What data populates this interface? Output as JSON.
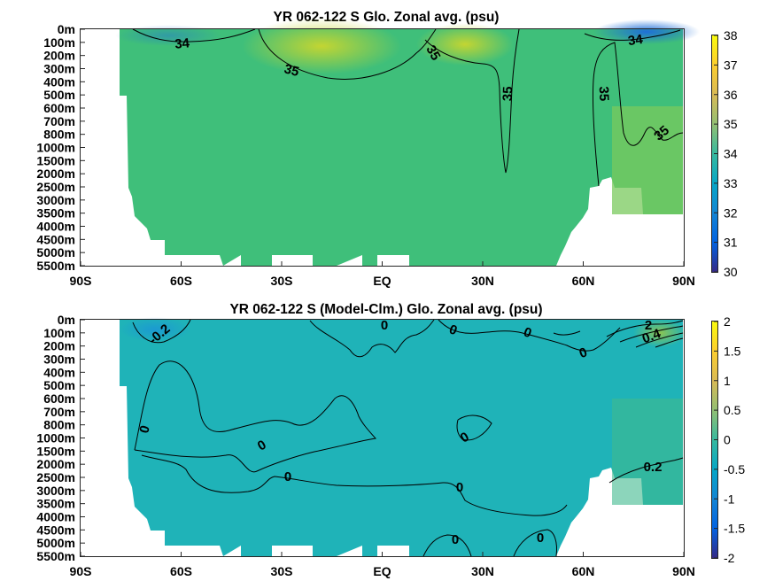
{
  "chart_data": [
    {
      "type": "heatmap",
      "title": "YR 062-122 S Glo. Zonal avg. (psu)",
      "x_ticks": [
        "90S",
        "60S",
        "30S",
        "EQ",
        "30N",
        "60N",
        "90N"
      ],
      "x_tick_values": [
        -90,
        -60,
        -30,
        0,
        30,
        60,
        90
      ],
      "y_ticks": [
        "0m",
        "100m",
        "200m",
        "300m",
        "400m",
        "500m",
        "600m",
        "700m",
        "800m",
        "1000m",
        "1500m",
        "2000m",
        "2500m",
        "3000m",
        "3500m",
        "4000m",
        "4500m",
        "5000m",
        "5500m"
      ],
      "colorbar": {
        "ticks": [
          "30",
          "31",
          "32",
          "33",
          "34",
          "35",
          "36",
          "37",
          "38"
        ],
        "range": [
          30,
          38
        ],
        "colormap": "parula"
      },
      "contour_labels": [
        "34",
        "35",
        "35",
        "35",
        "35",
        "34",
        "35"
      ],
      "fill_colors": {
        "dominant": "#3fbf7a",
        "high": "#b0d13a",
        "low": "#2c7fd9"
      }
    },
    {
      "type": "heatmap",
      "title": "YR 062-122 S (Model-Clm.) Glo. Zonal avg. (psu)",
      "x_ticks": [
        "90S",
        "60S",
        "30S",
        "EQ",
        "30N",
        "60N",
        "90N"
      ],
      "x_tick_values": [
        -90,
        -60,
        -30,
        0,
        30,
        60,
        90
      ],
      "y_ticks": [
        "0m",
        "100m",
        "200m",
        "300m",
        "400m",
        "500m",
        "600m",
        "700m",
        "800m",
        "1000m",
        "1500m",
        "2000m",
        "2500m",
        "3000m",
        "3500m",
        "4000m",
        "4500m",
        "5000m",
        "5500m"
      ],
      "colorbar": {
        "ticks": [
          "2",
          "1.5",
          "1",
          "0.5",
          "0",
          "-0.5",
          "-1",
          "-1.5",
          "-2"
        ],
        "range": [
          -2,
          2
        ],
        "colormap": "parula"
      },
      "contour_labels": [
        "-0.2",
        "0",
        "0",
        "0",
        "0",
        "2",
        "0.4",
        "0",
        "0",
        "0",
        "0",
        "0",
        "0",
        "0.2",
        "0",
        "0"
      ],
      "fill_colors": {
        "dominant": "#1fb3b8",
        "high": "#5cc06a",
        "low": "#1d9ad6"
      }
    }
  ]
}
